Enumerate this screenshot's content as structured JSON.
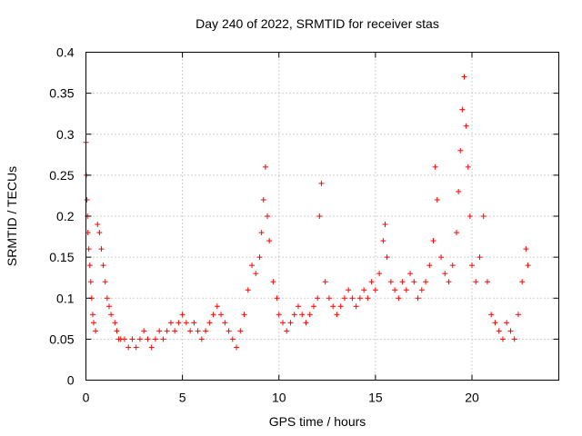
{
  "chart_data": {
    "type": "scatter",
    "title": "Day 240 of 2022, SRMTID for receiver stas",
    "xlabel": "GPS time / hours",
    "ylabel": "SRMTID / TECUs",
    "xlim": [
      0,
      24.5
    ],
    "ylim": [
      0,
      0.4
    ],
    "xticks": [
      0,
      5,
      10,
      15,
      20
    ],
    "xtick_labels": [
      "0",
      "5",
      "10",
      "15",
      "20"
    ],
    "yticks": [
      0,
      0.05,
      0.1,
      0.15,
      0.2,
      0.25,
      0.3,
      0.35,
      0.4
    ],
    "ytick_labels": [
      "0",
      "0.05",
      "0.1",
      "0.15",
      "0.2",
      "0.25",
      "0.3",
      "0.35",
      "0.4"
    ],
    "grid": true,
    "marker": "plus",
    "color": "#ff0000",
    "series": [
      {
        "name": "SRMTID",
        "points": [
          [
            0.0,
            0.29
          ],
          [
            0.02,
            0.25
          ],
          [
            0.05,
            0.22
          ],
          [
            0.08,
            0.2
          ],
          [
            0.1,
            0.18
          ],
          [
            0.15,
            0.16
          ],
          [
            0.2,
            0.14
          ],
          [
            0.25,
            0.12
          ],
          [
            0.3,
            0.1
          ],
          [
            0.35,
            0.08
          ],
          [
            0.4,
            0.07
          ],
          [
            0.5,
            0.06
          ],
          [
            0.6,
            0.19
          ],
          [
            0.7,
            0.18
          ],
          [
            0.8,
            0.16
          ],
          [
            0.9,
            0.14
          ],
          [
            1.0,
            0.12
          ],
          [
            1.1,
            0.1
          ],
          [
            1.2,
            0.09
          ],
          [
            1.3,
            0.08
          ],
          [
            1.5,
            0.07
          ],
          [
            1.6,
            0.06
          ],
          [
            1.7,
            0.05
          ],
          [
            1.8,
            0.05
          ],
          [
            2.0,
            0.05
          ],
          [
            2.2,
            0.04
          ],
          [
            2.4,
            0.05
          ],
          [
            2.6,
            0.04
          ],
          [
            2.8,
            0.05
          ],
          [
            3.0,
            0.06
          ],
          [
            3.2,
            0.05
          ],
          [
            3.4,
            0.04
          ],
          [
            3.6,
            0.05
          ],
          [
            3.8,
            0.06
          ],
          [
            4.0,
            0.05
          ],
          [
            4.2,
            0.06
          ],
          [
            4.4,
            0.07
          ],
          [
            4.6,
            0.06
          ],
          [
            4.8,
            0.07
          ],
          [
            5.0,
            0.08
          ],
          [
            5.2,
            0.07
          ],
          [
            5.4,
            0.06
          ],
          [
            5.6,
            0.07
          ],
          [
            5.8,
            0.06
          ],
          [
            6.0,
            0.05
          ],
          [
            6.2,
            0.06
          ],
          [
            6.4,
            0.07
          ],
          [
            6.6,
            0.08
          ],
          [
            6.8,
            0.09
          ],
          [
            7.0,
            0.08
          ],
          [
            7.2,
            0.07
          ],
          [
            7.4,
            0.06
          ],
          [
            7.6,
            0.05
          ],
          [
            7.8,
            0.04
          ],
          [
            8.0,
            0.06
          ],
          [
            8.2,
            0.08
          ],
          [
            8.4,
            0.11
          ],
          [
            8.6,
            0.14
          ],
          [
            8.8,
            0.13
          ],
          [
            9.0,
            0.15
          ],
          [
            9.1,
            0.18
          ],
          [
            9.2,
            0.22
          ],
          [
            9.3,
            0.26
          ],
          [
            9.4,
            0.2
          ],
          [
            9.5,
            0.17
          ],
          [
            9.7,
            0.12
          ],
          [
            9.9,
            0.1
          ],
          [
            10.0,
            0.08
          ],
          [
            10.2,
            0.07
          ],
          [
            10.4,
            0.06
          ],
          [
            10.6,
            0.07
          ],
          [
            10.8,
            0.08
          ],
          [
            11.0,
            0.09
          ],
          [
            11.2,
            0.08
          ],
          [
            11.4,
            0.07
          ],
          [
            11.6,
            0.08
          ],
          [
            11.8,
            0.09
          ],
          [
            12.0,
            0.1
          ],
          [
            12.1,
            0.2
          ],
          [
            12.2,
            0.24
          ],
          [
            12.4,
            0.12
          ],
          [
            12.6,
            0.1
          ],
          [
            12.8,
            0.09
          ],
          [
            13.0,
            0.08
          ],
          [
            13.2,
            0.09
          ],
          [
            13.4,
            0.1
          ],
          [
            13.6,
            0.11
          ],
          [
            13.8,
            0.1
          ],
          [
            14.0,
            0.09
          ],
          [
            14.2,
            0.1
          ],
          [
            14.4,
            0.11
          ],
          [
            14.6,
            0.1
          ],
          [
            14.8,
            0.12
          ],
          [
            15.0,
            0.11
          ],
          [
            15.2,
            0.13
          ],
          [
            15.4,
            0.17
          ],
          [
            15.5,
            0.19
          ],
          [
            15.6,
            0.15
          ],
          [
            15.8,
            0.12
          ],
          [
            16.0,
            0.11
          ],
          [
            16.2,
            0.1
          ],
          [
            16.4,
            0.12
          ],
          [
            16.6,
            0.11
          ],
          [
            16.8,
            0.13
          ],
          [
            17.0,
            0.12
          ],
          [
            17.2,
            0.1
          ],
          [
            17.4,
            0.11
          ],
          [
            17.6,
            0.12
          ],
          [
            17.8,
            0.14
          ],
          [
            18.0,
            0.17
          ],
          [
            18.1,
            0.26
          ],
          [
            18.2,
            0.22
          ],
          [
            18.4,
            0.15
          ],
          [
            18.6,
            0.13
          ],
          [
            18.8,
            0.12
          ],
          [
            19.0,
            0.14
          ],
          [
            19.2,
            0.18
          ],
          [
            19.3,
            0.23
          ],
          [
            19.4,
            0.28
          ],
          [
            19.5,
            0.33
          ],
          [
            19.6,
            0.37
          ],
          [
            19.7,
            0.31
          ],
          [
            19.8,
            0.26
          ],
          [
            19.9,
            0.2
          ],
          [
            20.0,
            0.14
          ],
          [
            20.2,
            0.12
          ],
          [
            20.4,
            0.15
          ],
          [
            20.6,
            0.2
          ],
          [
            20.8,
            0.12
          ],
          [
            21.0,
            0.08
          ],
          [
            21.2,
            0.07
          ],
          [
            21.4,
            0.06
          ],
          [
            21.6,
            0.05
          ],
          [
            21.8,
            0.07
          ],
          [
            22.0,
            0.06
          ],
          [
            22.2,
            0.05
          ],
          [
            22.4,
            0.08
          ],
          [
            22.6,
            0.12
          ],
          [
            22.8,
            0.16
          ],
          [
            22.9,
            0.14
          ]
        ]
      }
    ]
  }
}
